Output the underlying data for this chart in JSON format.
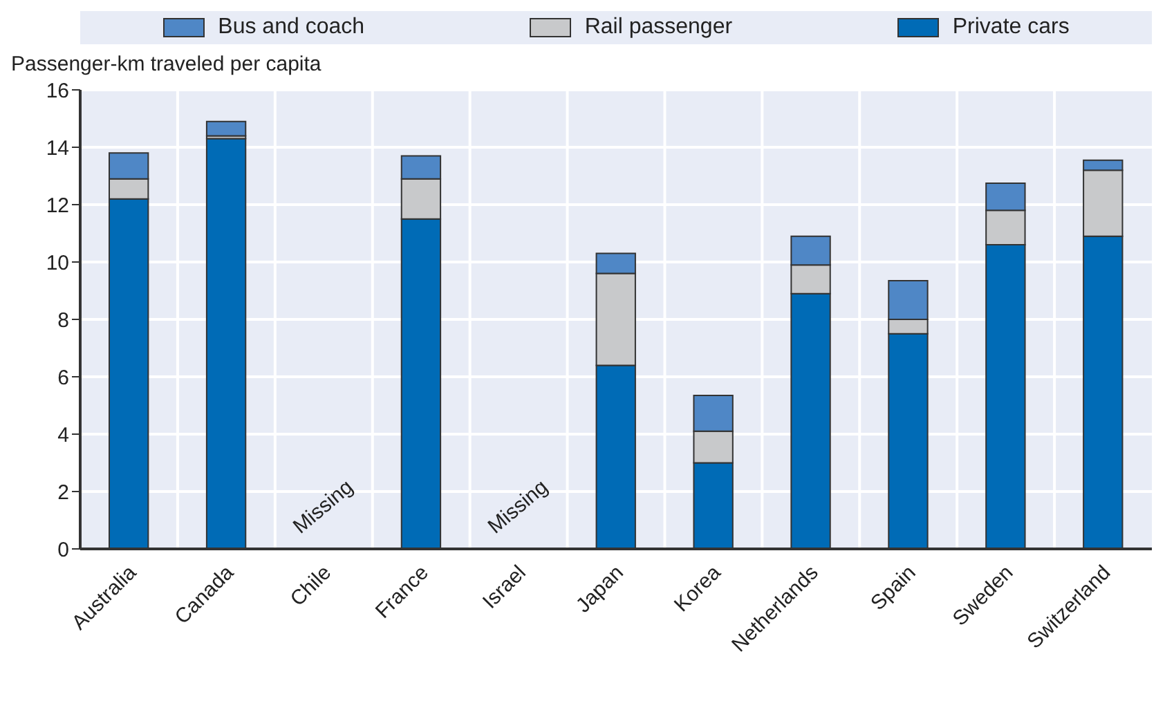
{
  "chart_data": {
    "type": "bar",
    "stacked": true,
    "ylabel": "Passenger-km traveled per capita",
    "categories": [
      "Australia",
      "Canada",
      "Chile",
      "France",
      "Israel",
      "Japan",
      "Korea",
      "Netherlands",
      "Spain",
      "Sweden",
      "Switzerland"
    ],
    "series": [
      {
        "name": "Private cars",
        "color": "#006bb6",
        "values": [
          12.2,
          14.3,
          null,
          11.5,
          null,
          6.4,
          3.0,
          8.9,
          7.5,
          10.6,
          10.9
        ]
      },
      {
        "name": "Rail passenger",
        "color": "#c8c9cb",
        "values": [
          0.7,
          0.1,
          null,
          1.4,
          null,
          3.2,
          1.1,
          1.0,
          0.5,
          1.2,
          2.3
        ]
      },
      {
        "name": "Bus and coach",
        "color": "#4f87c6",
        "values": [
          0.9,
          0.5,
          null,
          0.8,
          null,
          0.7,
          1.25,
          1.0,
          1.35,
          0.95,
          0.35
        ]
      }
    ],
    "ylim": [
      0,
      16
    ],
    "yticks": [
      0,
      2,
      4,
      6,
      8,
      10,
      12,
      14,
      16
    ],
    "grid": true,
    "legend": "top",
    "annotations": [
      "Missing",
      "Missing"
    ]
  }
}
